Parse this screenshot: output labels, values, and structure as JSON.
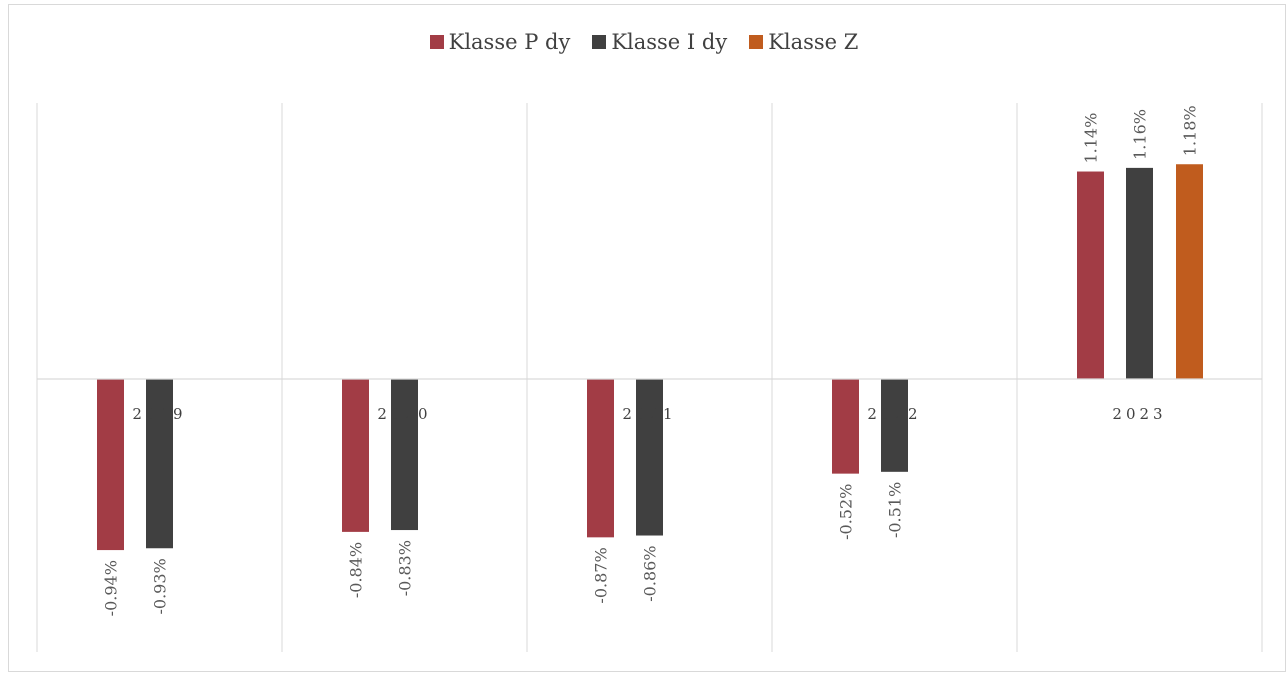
{
  "chart_data": {
    "type": "bar",
    "categories": [
      "2019",
      "2020",
      "2021",
      "2022",
      "2023"
    ],
    "series": [
      {
        "name": "Klasse P dy",
        "color": "#A23C45",
        "values": [
          -0.94,
          -0.84,
          -0.87,
          -0.52,
          1.14
        ]
      },
      {
        "name": "Klasse I dy",
        "color": "#404040",
        "values": [
          -0.93,
          -0.83,
          -0.86,
          -0.51,
          1.16
        ]
      },
      {
        "name": "Klasse Z",
        "color": "#C05C1E",
        "values": [
          null,
          null,
          null,
          null,
          1.18
        ]
      }
    ],
    "data_labels": [
      [
        "-0.94%",
        "-0.84%",
        "-0.87%",
        "-0.52%",
        "1.14%"
      ],
      [
        "-0.93%",
        "-0.83%",
        "-0.86%",
        "-0.51%",
        "1.16%"
      ],
      [
        "",
        "",
        "",
        "",
        "1.18%"
      ]
    ],
    "ylim": [
      -1.5,
      1.5
    ],
    "grid": "vertical",
    "legend_position": "top"
  }
}
